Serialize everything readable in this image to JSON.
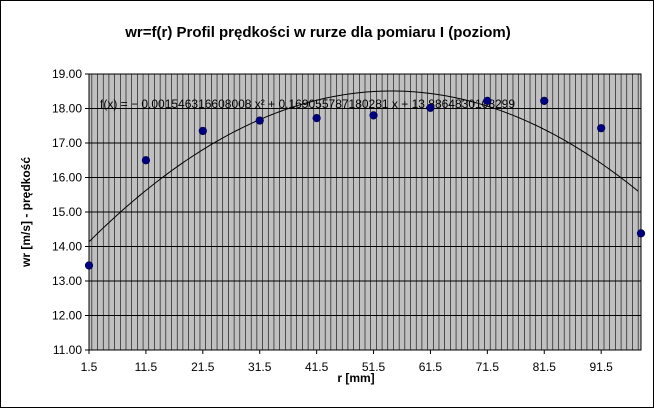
{
  "chart_data": {
    "type": "scatter",
    "title": "wr=f(r) Profil prędkości w rurze dla pomiaru I (poziom)",
    "xlabel": "r [mm]",
    "ylabel": "wr [m/s] - prędkość",
    "xlim": [
      1.5,
      98.5
    ],
    "ylim": [
      11.0,
      19.0
    ],
    "x_ticks": [
      "1.5",
      "11.5",
      "21.5",
      "31.5",
      "41.5",
      "51.5",
      "61.5",
      "71.5",
      "81.5",
      "91.5"
    ],
    "y_ticks": [
      "11.00",
      "12.00",
      "13.00",
      "14.00",
      "15.00",
      "16.00",
      "17.00",
      "18.00",
      "19.00"
    ],
    "grid": true,
    "series": [
      {
        "points": [
          [
            1.5,
            13.45
          ],
          [
            11.5,
            16.5
          ],
          [
            21.5,
            17.35
          ],
          [
            31.5,
            17.65
          ],
          [
            41.5,
            17.72
          ],
          [
            51.5,
            17.8
          ],
          [
            61.5,
            18.02
          ],
          [
            71.5,
            18.22
          ],
          [
            81.5,
            18.22
          ],
          [
            91.5,
            17.43
          ],
          [
            98.5,
            14.38
          ]
        ],
        "marker_color": "#000080"
      }
    ],
    "trendline": {
      "equation": "f(x) = − 0.001546316608008 x² + 0.169055787180281 x + 13.8864830108299",
      "a": -0.001546316608008,
      "b": 0.169055787180281,
      "c": 13.8864830108299,
      "color": "#000000"
    },
    "plot_background": "#c0c0c0"
  }
}
